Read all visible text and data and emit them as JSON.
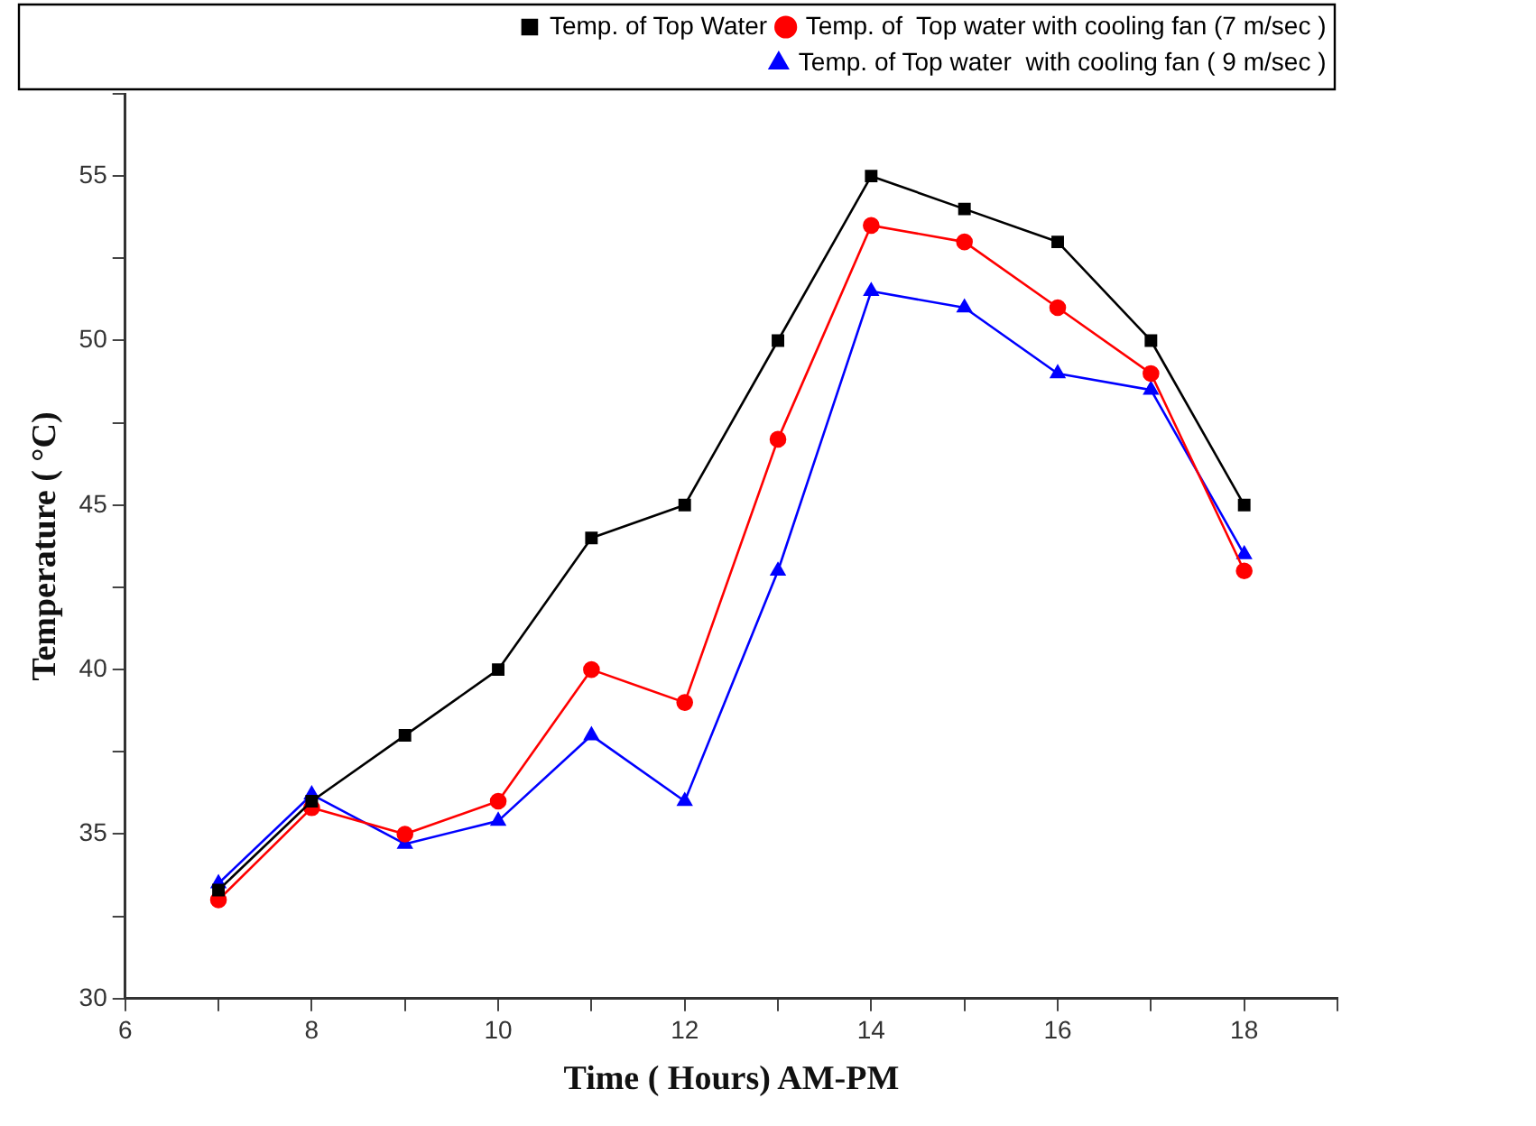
{
  "chart_data": {
    "type": "line",
    "xlabel": "Time ( Hours) AM-PM",
    "ylabel": "Temperature ( °C)",
    "x": [
      7,
      8,
      9,
      10,
      11,
      12,
      13,
      14,
      15,
      16,
      17,
      18
    ],
    "series": [
      {
        "name": "Temp. of Top Water",
        "color": "#000000",
        "marker": "square",
        "values": [
          33.3,
          36,
          38,
          40,
          44,
          45,
          50,
          55,
          54,
          53,
          50,
          45
        ]
      },
      {
        "name": "Temp. of  Top water with cooling fan (7 m/sec )",
        "color": "#ff0000",
        "marker": "circle",
        "values": [
          33,
          35.8,
          35,
          36,
          40,
          39,
          47,
          53.5,
          53,
          51,
          49,
          43
        ]
      },
      {
        "name": "Temp. of Top water  with cooling fan ( 9 m/sec )",
        "color": "#0000ff",
        "marker": "triangle",
        "values": [
          33.5,
          36.2,
          34.7,
          35.4,
          38,
          36,
          43,
          51.5,
          51,
          49,
          48.5,
          43.5
        ]
      }
    ],
    "xlim": [
      6,
      19
    ],
    "xticks": [
      6,
      {
        "value": 7,
        "label": null
      },
      8,
      {
        "value": 9,
        "label": null
      },
      10,
      {
        "value": 11,
        "label": null
      },
      12,
      {
        "value": 13,
        "label": null
      },
      14,
      {
        "value": 15,
        "label": null
      },
      16,
      {
        "value": 17,
        "label": null
      },
      18,
      {
        "value": 19,
        "label": null
      }
    ],
    "ylim": [
      30,
      57.5
    ],
    "yticks": [
      30,
      {
        "value": 32.5,
        "label": null
      },
      35,
      {
        "value": 37.5,
        "label": null
      },
      40,
      {
        "value": 42.5,
        "label": null
      },
      45,
      {
        "value": 47.5,
        "label": null
      },
      50,
      {
        "value": 52.5,
        "label": null
      },
      55,
      {
        "value": 57.5,
        "label": null
      }
    ],
    "grid": false,
    "legend": "top right",
    "line_style": "solid"
  }
}
